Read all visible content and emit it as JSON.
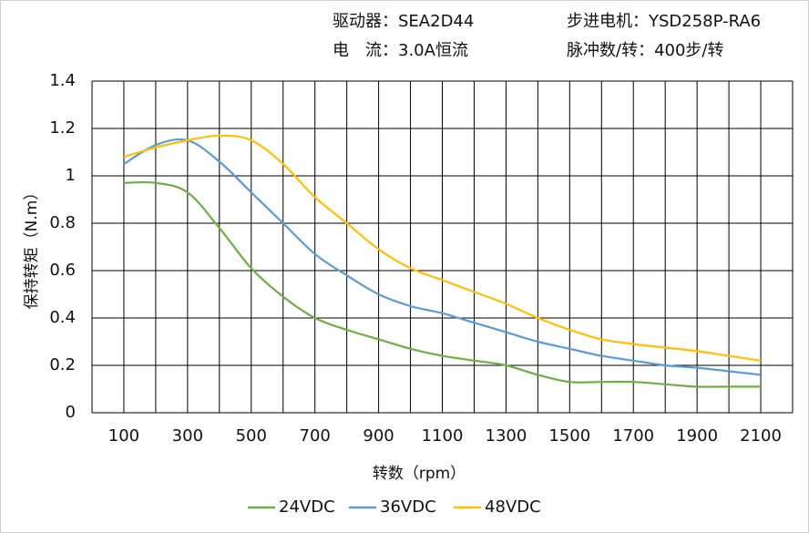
{
  "chart_data": {
    "type": "line",
    "annotations": [
      "驱动器：SEA2D44",
      "步进电机：YSD258P-RA6",
      "电　流：3.0A恒流",
      "脉冲数/转：400步/转"
    ],
    "ylabel": "保持转矩（N.m）",
    "xlabel": "转数（rpm）",
    "x": [
      100,
      200,
      300,
      400,
      500,
      600,
      700,
      800,
      900,
      1000,
      1100,
      1200,
      1300,
      1400,
      1500,
      1600,
      1700,
      1800,
      1900,
      2000,
      2100
    ],
    "series": [
      {
        "name": "24VDC",
        "color": "#70ad47",
        "values": [
          0.97,
          0.97,
          0.93,
          0.78,
          0.61,
          0.49,
          0.4,
          0.35,
          0.31,
          0.27,
          0.24,
          0.22,
          0.2,
          0.16,
          0.13,
          0.13,
          0.13,
          0.12,
          0.11,
          0.11,
          0.11
        ]
      },
      {
        "name": "36VDC",
        "color": "#5b9bd5",
        "values": [
          1.05,
          1.13,
          1.15,
          1.06,
          0.93,
          0.8,
          0.67,
          0.58,
          0.5,
          0.45,
          0.42,
          0.38,
          0.34,
          0.3,
          0.27,
          0.24,
          0.22,
          0.2,
          0.19,
          0.175,
          0.16
        ]
      },
      {
        "name": "48VDC",
        "color": "#ffc000",
        "values": [
          1.08,
          1.12,
          1.15,
          1.17,
          1.15,
          1.05,
          0.91,
          0.8,
          0.69,
          0.61,
          0.56,
          0.51,
          0.46,
          0.4,
          0.35,
          0.31,
          0.29,
          0.275,
          0.26,
          0.24,
          0.22
        ]
      }
    ],
    "xlim": [
      0,
      2200
    ],
    "xticks": [
      100,
      300,
      500,
      700,
      900,
      1100,
      1300,
      1500,
      1700,
      1900,
      2100
    ],
    "xgrid": [
      0,
      200,
      400,
      600,
      800,
      1000,
      1200,
      1400,
      1600,
      1800,
      2000,
      2200
    ],
    "ylim": [
      0,
      1.4
    ],
    "yticks": [
      0,
      0.2,
      0.4,
      0.6,
      0.8,
      1,
      1.2,
      1.4
    ],
    "grid": true,
    "legend": "bottom"
  }
}
